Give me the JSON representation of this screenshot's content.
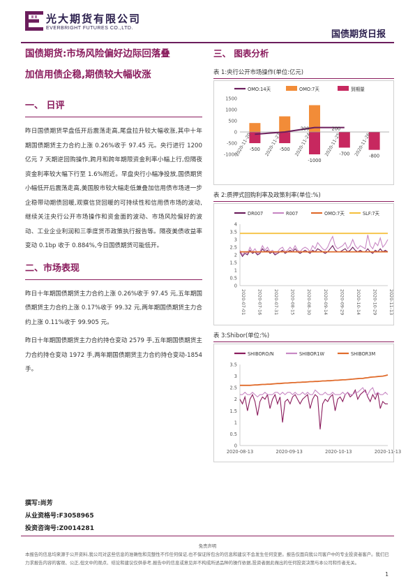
{
  "header": {
    "company_cn": "光大期货有限公司",
    "company_en": "EVERBRIGHT FUTURES CO.,LTD.",
    "report_type": "国债期货日报",
    "colors": {
      "brand": "#6b1d5c",
      "accent": "#8a1c5d"
    }
  },
  "left": {
    "title_line1": "国债期货:市场风险偏好边际回落叠",
    "title_line2": "加信用债企稳,期债较大幅收涨",
    "section1_heading": "一、 日评",
    "section1_para": "昨日国债期货早盘低开后震荡走高,尾盘拉升较大幅收涨,其中十年期国债期货主力合约上涨 0.26%收于 97.45 元。央行进行 1200 亿元 7 天期逆回购操作,跨月和跨年期限资金利率小幅上行,但隔夜资金利率较大幅下行至 1.6%附近。早盘央行小幅净投放,国债期货小幅低开后震荡走高,美国股市较大幅走低兼叠加信用债市场进一步企稳带动期债回暖,观察信贷回暖的可持续性和信用债市场的波动,继续关注央行公开市场操作和资金面的波动、市场风险偏好的波动、工业企业利润和三季度货币政策执行报告等。隔夜美债收益率变动 0.1bp 收于 0.884%,今日国债期货可能低开。",
    "section2_heading": "二、市场表现",
    "section2_para1": "昨日十年期国债期货主力合约上涨 0.26%收于 97.45 元,五年期国债期货主力合约上涨 0.17%收于 99.32 元,两年期国债期货主力合约上涨 0.11%收于 99.905 元。",
    "section2_para2": "昨日十年期国债期货主力合约持仓变动 2579 手,五年期国债期货主力合约持仓变动 1972 手,两年期国债期货主力合约持仓变动-1854 手。"
  },
  "right": {
    "section3_heading": "三、 图表分析",
    "fig1_title": "表 1:央行公开市场操作(单位:亿元)",
    "fig2_title": "表 2:质押式回购利率及政策利率(单位:%)",
    "fig3_title": "表 3:Shibor(单位:%)"
  },
  "chart_data": [
    {
      "type": "bar",
      "title": "央行公开市场操作(单位:亿元)",
      "categories": [
        "2020-11-20",
        "2020-11-23",
        "2020-11-24",
        "2020-11-25",
        "2020-11-26"
      ],
      "series": [
        {
          "name": "OMO:14天",
          "type": "line",
          "values": [
            -100,
            0,
            200,
            200,
            null
          ],
          "color": "#6b1d5c"
        },
        {
          "name": "OMO:7天",
          "type": "bar",
          "values": [
            400,
            700,
            1200,
            null,
            null
          ],
          "color": "#f28c38"
        },
        {
          "name": "到期量",
          "type": "bar",
          "values": [
            -500,
            -500,
            -1000,
            -700,
            -800
          ],
          "color": "#c7285f"
        }
      ],
      "data_labels": [
        "-500",
        "-500",
        "-1000",
        "-700",
        "-800",
        "200",
        "200"
      ],
      "ylim": [
        -1000,
        1500
      ],
      "yticks": [
        "1500",
        "1000",
        "500",
        "0",
        "-500",
        "-1000"
      ],
      "legend": "top"
    },
    {
      "type": "line",
      "title": "质押式回购利率及政策利率(单位:%)",
      "x_ticks": [
        "2020-07-01",
        "2020-07-16",
        "2020-07-31",
        "2020-08-15",
        "2020-08-30",
        "2020-09-14",
        "2020-09-29",
        "2020-10-14",
        "2020-10-29",
        "2020-11-13"
      ],
      "ylim": [
        0,
        4
      ],
      "yticks": [
        "4",
        "3.5",
        "3",
        "2.5",
        "2",
        "1.5",
        "1",
        "0.5",
        "0"
      ],
      "legend": "top",
      "series": [
        {
          "name": "DR007",
          "color": "#6b1d5c",
          "values": [
            2.2,
            1.9,
            2.1,
            2.0,
            2.3,
            2.1,
            2.2,
            2.0,
            2.1,
            2.4,
            2.2,
            2.3,
            2.1,
            2.2,
            2.0,
            2.1,
            2.2,
            2.3,
            2.1,
            2.2,
            2.3,
            2.2,
            2.4,
            2.2,
            2.1,
            2.2,
            2.3,
            2.2,
            2.1,
            2.3,
            2.2,
            2.4,
            2.3,
            2.2,
            2.1,
            2.2,
            2.4,
            2.6,
            2.3,
            2.2,
            2.2,
            2.3,
            2.4,
            2.2,
            2.3,
            2.5,
            2.3,
            2.2,
            2.3,
            2.2,
            2.2,
            2.4,
            2.2,
            2.1,
            2.3,
            2.2,
            2.4,
            2.2,
            2.3,
            2.2
          ]
        },
        {
          "name": "R007",
          "color": "#c888c4",
          "values": [
            2.3,
            2.0,
            2.2,
            2.1,
            2.5,
            2.2,
            2.4,
            2.1,
            2.2,
            2.6,
            2.3,
            2.5,
            2.2,
            2.3,
            2.1,
            2.2,
            2.4,
            2.5,
            2.2,
            2.3,
            2.5,
            2.3,
            2.6,
            2.3,
            2.2,
            2.4,
            2.5,
            2.4,
            2.2,
            2.6,
            2.4,
            2.8,
            2.6,
            2.4,
            2.3,
            2.5,
            2.9,
            3.2,
            2.6,
            2.4,
            2.5,
            2.6,
            2.8,
            2.4,
            2.6,
            3.0,
            2.6,
            2.4,
            2.6,
            2.5,
            2.4,
            3.3,
            2.6,
            2.4,
            2.8,
            2.6,
            3.1,
            2.5,
            2.7,
            3.0
          ]
        },
        {
          "name": "OMO:7天",
          "color": "#e06b2b",
          "values": [
            2.2,
            2.2,
            2.2,
            2.2,
            2.2,
            2.2,
            2.2,
            2.2,
            2.2,
            2.2,
            2.2,
            2.2,
            2.2,
            2.2,
            2.2,
            2.2,
            2.2,
            2.2,
            2.2,
            2.2,
            2.2,
            2.2,
            2.2,
            2.2,
            2.2,
            2.2,
            2.2,
            2.2,
            2.2,
            2.2,
            2.2,
            2.2,
            2.2,
            2.2,
            2.2,
            2.2,
            2.2,
            2.2,
            2.2,
            2.2,
            2.2,
            2.2,
            2.2,
            2.2,
            2.2,
            2.2,
            2.2,
            2.2,
            2.2,
            2.2,
            2.2,
            2.2,
            2.2,
            2.2,
            2.2,
            2.2,
            2.2,
            2.2,
            2.2,
            2.2
          ]
        },
        {
          "name": "SLF:7天",
          "color": "#f5c242",
          "values": [
            3.4,
            3.4,
            3.4,
            3.4,
            3.4,
            3.4,
            3.4,
            3.4,
            3.4,
            3.4,
            3.4,
            3.4,
            3.4,
            3.4,
            3.4,
            3.4,
            3.4,
            3.4,
            3.4,
            3.4,
            3.4,
            3.4,
            3.4,
            3.4,
            3.4,
            3.4,
            3.4,
            3.4,
            3.4,
            3.4,
            3.4,
            3.4,
            3.4,
            3.4,
            3.4,
            3.4,
            3.4,
            3.4,
            3.4,
            3.4,
            3.4,
            3.4,
            3.4,
            3.4,
            3.4,
            3.4,
            3.4,
            3.4,
            3.4,
            3.4,
            3.4,
            3.4,
            3.4,
            3.4,
            3.4,
            3.4,
            3.4,
            3.4,
            3.4,
            3.4
          ]
        }
      ]
    },
    {
      "type": "line",
      "title": "Shibor(单位:%)",
      "x_ticks": [
        "2020-08-13",
        "2020-09-13",
        "2020-10-13",
        "2020-11-13"
      ],
      "ylim": [
        0,
        3.5
      ],
      "yticks": [
        "3.5",
        "3",
        "2.5",
        "2",
        "1.5",
        "1",
        "0.5",
        "0"
      ],
      "legend": "top",
      "series": [
        {
          "name": "SHIBORO/N",
          "color": "#8a1c5d",
          "values": [
            2.0,
            1.8,
            2.1,
            1.5,
            2.0,
            2.2,
            1.9,
            1.3,
            1.9,
            2.1,
            2.0,
            2.2,
            1.6,
            2.0,
            2.2,
            1.8,
            2.1,
            1.0,
            1.9,
            2.0,
            1.8,
            2.1,
            2.2,
            2.0,
            1.8,
            2.0,
            2.1,
            2.2,
            1.6,
            2.0,
            2.2,
            2.1,
            0.7,
            1.8,
            2.0,
            1.9,
            2.1,
            2.2,
            1.5,
            2.0,
            2.1,
            1.9,
            2.2,
            2.3,
            2.1,
            2.2,
            2.4,
            2.0,
            2.2,
            2.3,
            2.4,
            2.1,
            1.9,
            2.2,
            2.0,
            2.3,
            1.6,
            1.9,
            1.8,
            1.8
          ]
        },
        {
          "name": "SHIBOR1W",
          "color": "#c888c4",
          "values": [
            2.2,
            2.2,
            2.3,
            2.2,
            2.2,
            2.3,
            2.2,
            2.1,
            2.2,
            2.2,
            2.3,
            2.2,
            2.2,
            2.2,
            2.3,
            2.3,
            2.2,
            2.3,
            2.2,
            2.3,
            2.3,
            2.2,
            2.3,
            2.2,
            2.2,
            2.3,
            2.2,
            2.3,
            2.2,
            2.2,
            2.4,
            2.3,
            2.2,
            2.2,
            2.3,
            2.2,
            2.2,
            2.3,
            2.2,
            2.2,
            2.2,
            2.3,
            2.2,
            2.3,
            2.2,
            2.2,
            2.3,
            2.3,
            2.4,
            2.5,
            2.3,
            2.2,
            2.4,
            2.5,
            2.2,
            2.3,
            2.2,
            2.2,
            2.3,
            2.2
          ]
        },
        {
          "name": "SHIBOR3M",
          "color": "#e06b2b",
          "values": [
            2.6,
            2.6,
            2.6,
            2.6,
            2.6,
            2.61,
            2.62,
            2.62,
            2.63,
            2.64,
            2.64,
            2.65,
            2.65,
            2.66,
            2.67,
            2.68,
            2.68,
            2.69,
            2.7,
            2.7,
            2.71,
            2.72,
            2.72,
            2.73,
            2.73,
            2.74,
            2.74,
            2.75,
            2.76,
            2.76,
            2.77,
            2.77,
            2.78,
            2.79,
            2.79,
            2.8,
            2.8,
            2.81,
            2.82,
            2.82,
            2.83,
            2.84,
            2.84,
            2.85,
            2.86,
            2.87,
            2.88,
            2.89,
            2.9,
            2.9,
            2.92,
            2.93,
            2.95,
            2.96,
            2.97,
            2.98,
            2.99,
            3.0,
            3.02,
            3.05
          ]
        }
      ]
    }
  ],
  "author": {
    "line1": "撰写:尚芳",
    "line2": "从业资格号:F3058965",
    "line3": "投资咨询号:Z0014281"
  },
  "footer": {
    "disclaimer_head": "免责声明",
    "disclaimer_body": "本报告的信息均来源于公开资料,我公司对这些信息的准确性和完整性不作任何保证,也不保证所包含的信息和建议不会发生任何变更。报告仅面向我公司客户中的专业投资者客户。我们已力求报告内容的客观、公正,但文中的观点、结论和建议仅供参考,报告中的信息或意见并不构成所述品种的操作依据,投资者据此做出的任何投资决策与本公司和作者无关。",
    "page_number": "1"
  }
}
